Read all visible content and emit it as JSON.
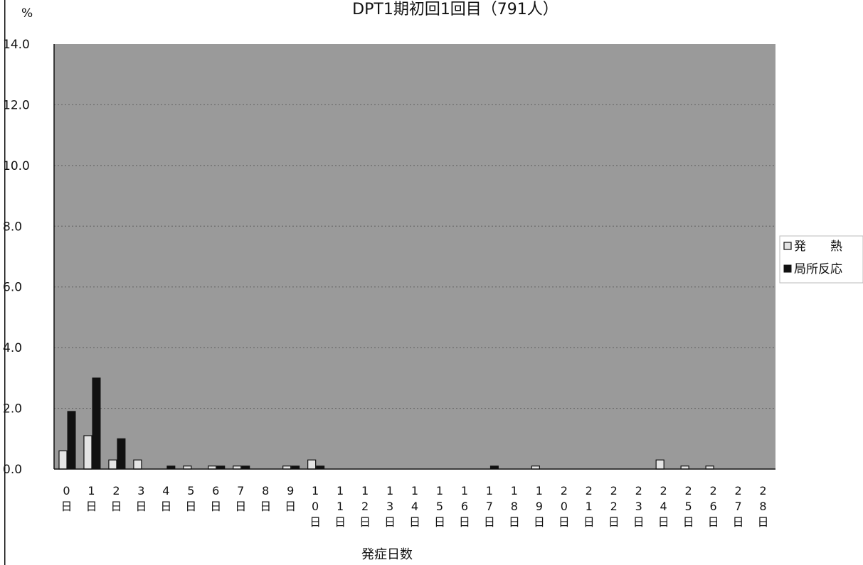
{
  "chart_data": {
    "type": "bar",
    "title": "DPT1期初回1回目（791人）",
    "unit_label": "%",
    "xlabel": "発症日数",
    "ylim": [
      0,
      14
    ],
    "yticks": [
      "0.0",
      "2.0",
      "4.0",
      "6.0",
      "8.0",
      "10.0",
      "12.0",
      "14.0"
    ],
    "grid": true,
    "legend_position": "right",
    "categories": [
      "0日",
      "1日",
      "2日",
      "3日",
      "4日",
      "5日",
      "6日",
      "7日",
      "8日",
      "9日",
      "10日",
      "11日",
      "12日",
      "13日",
      "14日",
      "15日",
      "16日",
      "17日",
      "18日",
      "19日",
      "20日",
      "21日",
      "22日",
      "23日",
      "24日",
      "25日",
      "26日",
      "27日",
      "28日"
    ],
    "series": [
      {
        "name": "発　　熱",
        "color": "#e4e4e4",
        "values": [
          0.6,
          1.1,
          0.3,
          0.3,
          0.0,
          0.1,
          0.1,
          0.1,
          0.0,
          0.1,
          0.3,
          0.0,
          0.0,
          0.0,
          0.0,
          0.0,
          0.0,
          0.0,
          0.0,
          0.1,
          0.0,
          0.0,
          0.0,
          0.0,
          0.3,
          0.1,
          0.1,
          0.0,
          0.0
        ]
      },
      {
        "name": "局所反応",
        "color": "#111111",
        "values": [
          1.9,
          3.0,
          1.0,
          0.0,
          0.1,
          0.0,
          0.1,
          0.1,
          0.0,
          0.1,
          0.1,
          0.0,
          0.0,
          0.0,
          0.0,
          0.0,
          0.0,
          0.1,
          0.0,
          0.0,
          0.0,
          0.0,
          0.0,
          0.0,
          0.0,
          0.0,
          0.0,
          0.0,
          0.0
        ]
      }
    ]
  }
}
